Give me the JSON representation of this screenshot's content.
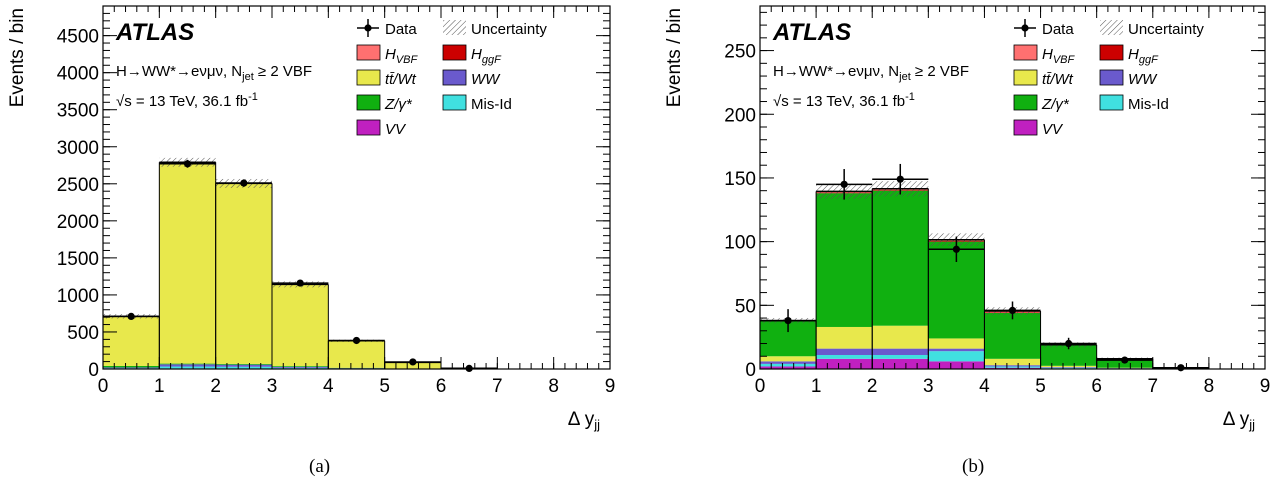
{
  "panels": [
    {
      "caption": "(a)",
      "chart_data": {
        "type": "bar",
        "stacked": true,
        "x_bin_edges": [
          0,
          1,
          2,
          3,
          4,
          5,
          6,
          7,
          8,
          9
        ],
        "xlim": [
          0,
          9
        ],
        "ylim": [
          0,
          4900
        ],
        "yticks": [
          0,
          500,
          1000,
          1500,
          2000,
          2500,
          3000,
          3500,
          4000,
          4500
        ],
        "xticks": [
          0,
          1,
          2,
          3,
          4,
          5,
          6,
          7,
          8,
          9
        ],
        "ylabel": "Events / bin",
        "xlabel": "Δ y",
        "xlabel_sub": "jj",
        "series": [
          {
            "name": "VV",
            "color": "#c020c0",
            "values": [
              3,
              8,
              7,
              4,
              2,
              1,
              0,
              0,
              0
            ]
          },
          {
            "name": "Mis-Id",
            "color": "#40e0e0",
            "values": [
              8,
              25,
              23,
              12,
              4,
              1,
              0,
              0,
              0
            ]
          },
          {
            "name": "WW",
            "color": "#6a5acd",
            "values": [
              10,
              30,
              28,
              14,
              5,
              2,
              0,
              0,
              0
            ]
          },
          {
            "name": "Z/γ*",
            "color": "#10b010",
            "values": [
              20,
              10,
              10,
              10,
              5,
              3,
              0,
              0,
              0
            ]
          },
          {
            "name": "tt̄/Wt",
            "color": "#e8e84c",
            "values": [
              670,
              2712,
              2432,
              1100,
              364,
              83,
              10,
              0,
              0
            ]
          },
          {
            "name": "HggF",
            "color": "#cc0000",
            "values": [
              0,
              3,
              3,
              1,
              0,
              0,
              0,
              0,
              0
            ]
          },
          {
            "name": "HVBF",
            "color": "#ff7070",
            "values": [
              0,
              2,
              2,
              1,
              1,
              0,
              0,
              0,
              0
            ]
          }
        ],
        "data": {
          "name": "Data",
          "x": [
            0.5,
            1.5,
            2.5,
            3.5,
            4.5,
            5.5,
            6.5
          ],
          "y": [
            710,
            2770,
            2510,
            1160,
            385,
            95,
            8
          ],
          "yerr": [
            27,
            53,
            50,
            34,
            20,
            10,
            3
          ]
        },
        "uncertainty": [
          30,
          60,
          60,
          40,
          15,
          6,
          2,
          0,
          0
        ],
        "atlas_label": "ATLAS",
        "annotations": {
          "process": "H→WW*→eνμν, N",
          "process_sub": "jet",
          "process_tail": " ≥ 2 VBF",
          "energy": "√s = 13 TeV, 36.1 fb",
          "energy_sup": "-1"
        }
      }
    },
    {
      "caption": "(b)",
      "chart_data": {
        "type": "bar",
        "stacked": true,
        "x_bin_edges": [
          0,
          1,
          2,
          3,
          4,
          5,
          6,
          7,
          8,
          9
        ],
        "xlim": [
          0,
          9
        ],
        "ylim": [
          0,
          285
        ],
        "yticks": [
          0,
          50,
          100,
          150,
          200,
          250
        ],
        "xticks": [
          0,
          1,
          2,
          3,
          4,
          5,
          6,
          7,
          8,
          9
        ],
        "ylabel": "Events / bin",
        "xlabel": "Δ y",
        "xlabel_sub": "jj",
        "series": [
          {
            "name": "VV",
            "color": "#c020c0",
            "values": [
              2,
              8,
              8,
              6,
              1,
              0.5,
              0.2,
              0,
              0
            ]
          },
          {
            "name": "Mis-Id",
            "color": "#40e0e0",
            "values": [
              2,
              3,
              3,
              8,
              1,
              0.5,
              0.3,
              0,
              0
            ]
          },
          {
            "name": "WW",
            "color": "#6a5acd",
            "values": [
              2,
              5,
              5,
              2,
              1,
              0.5,
              0.2,
              0,
              0
            ]
          },
          {
            "name": "tt̄/Wt",
            "color": "#e8e84c",
            "values": [
              4,
              17,
              18,
              8,
              5,
              1,
              0.3,
              0,
              0
            ]
          },
          {
            "name": "Z/γ*",
            "color": "#10b010",
            "values": [
              28,
              105,
              106,
              76,
              36,
              16,
              7,
              1,
              0
            ]
          },
          {
            "name": "HggF",
            "color": "#cc0000",
            "values": [
              0,
              0.5,
              0.5,
              0.5,
              0.5,
              0,
              0,
              0,
              0
            ]
          },
          {
            "name": "HVBF",
            "color": "#ff7070",
            "values": [
              0,
              1,
              1,
              1,
              1,
              0.5,
              0,
              0,
              0
            ]
          }
        ],
        "data": {
          "name": "Data",
          "x": [
            0.5,
            1.5,
            2.5,
            3.5,
            4.5,
            5.5,
            6.5,
            7.5
          ],
          "y": [
            38,
            145,
            149,
            94,
            46,
            20,
            7,
            1
          ],
          "yerr": [
            9,
            12,
            12,
            10,
            7,
            4.5,
            2.6,
            1
          ]
        },
        "uncertainty": [
          2,
          6,
          6,
          5,
          3,
          2,
          1,
          0,
          0
        ],
        "atlas_label": "ATLAS",
        "annotations": {
          "process": "H→WW*→eνμν, N",
          "process_sub": "jet",
          "process_tail": " ≥ 2 VBF",
          "energy": "√s = 13 TeV, 36.1 fb",
          "energy_sup": "-1"
        }
      }
    }
  ],
  "legend": [
    {
      "key": "data",
      "label": "Data",
      "sub": "",
      "type": "marker"
    },
    {
      "key": "unc",
      "label": "Uncertainty",
      "sub": "",
      "type": "hatch"
    },
    {
      "key": "hvbf",
      "label": "H",
      "sub": "VBF",
      "color": "#ff7070"
    },
    {
      "key": "hggf",
      "label": "H",
      "sub": "ggF",
      "color": "#cc0000"
    },
    {
      "key": "tt",
      "label": "tt̄/Wt",
      "sub": "",
      "color": "#e8e84c"
    },
    {
      "key": "ww",
      "label": "WW",
      "sub": "",
      "color": "#6a5acd"
    },
    {
      "key": "z",
      "label": "Z/γ*",
      "sub": "",
      "color": "#10b010"
    },
    {
      "key": "misid",
      "label": "Mis-Id",
      "sub": "",
      "color": "#40e0e0"
    },
    {
      "key": "vv",
      "label": "VV",
      "sub": "",
      "color": "#c020c0"
    }
  ]
}
